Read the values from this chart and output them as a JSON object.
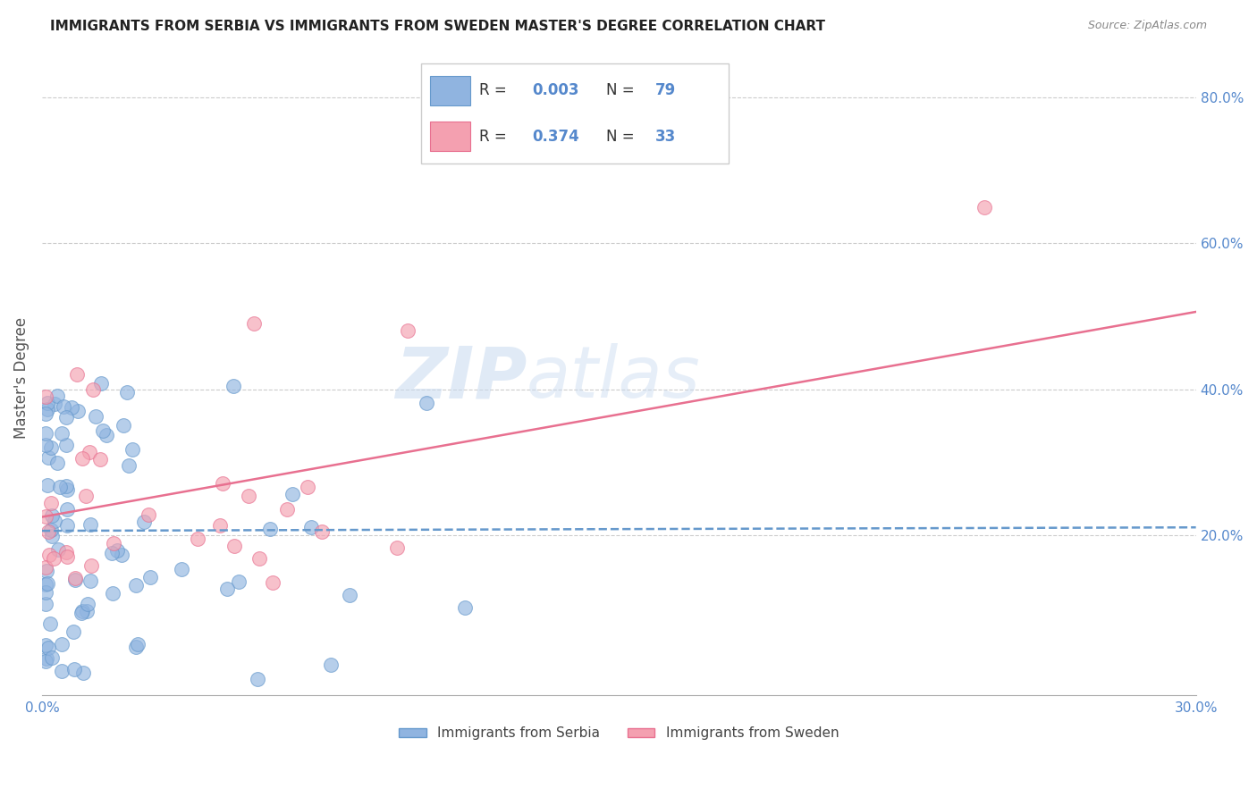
{
  "title": "IMMIGRANTS FROM SERBIA VS IMMIGRANTS FROM SWEDEN MASTER'S DEGREE CORRELATION CHART",
  "source": "Source: ZipAtlas.com",
  "xlabel_serbia": "Immigrants from Serbia",
  "xlabel_sweden": "Immigrants from Sweden",
  "ylabel": "Master's Degree",
  "xmin": 0.0,
  "xmax": 0.3,
  "ymin": -0.02,
  "ymax": 0.85,
  "right_yticks": [
    0.2,
    0.4,
    0.6,
    0.8
  ],
  "right_yticklabels": [
    "20.0%",
    "40.0%",
    "60.0%",
    "80.0%"
  ],
  "xticks": [
    0.0,
    0.05,
    0.1,
    0.15,
    0.2,
    0.25,
    0.3
  ],
  "xticklabels": [
    "0.0%",
    "",
    "",
    "",
    "",
    "",
    "30.0%"
  ],
  "legend_serbia_r": "0.003",
  "legend_serbia_n": "79",
  "legend_sweden_r": "0.374",
  "legend_sweden_n": "33",
  "color_serbia": "#90b4e0",
  "color_sweden": "#f4a0b0",
  "color_serbia_dark": "#6699cc",
  "color_sweden_dark": "#e87090",
  "color_axis_label": "#5588cc",
  "color_grid": "#cccccc",
  "color_title": "#333333",
  "watermark_zip": "ZIP",
  "watermark_atlas": "atlas",
  "serbia_r": 0.003,
  "serbia_n": 79,
  "sweden_r": 0.374,
  "sweden_n": 33
}
